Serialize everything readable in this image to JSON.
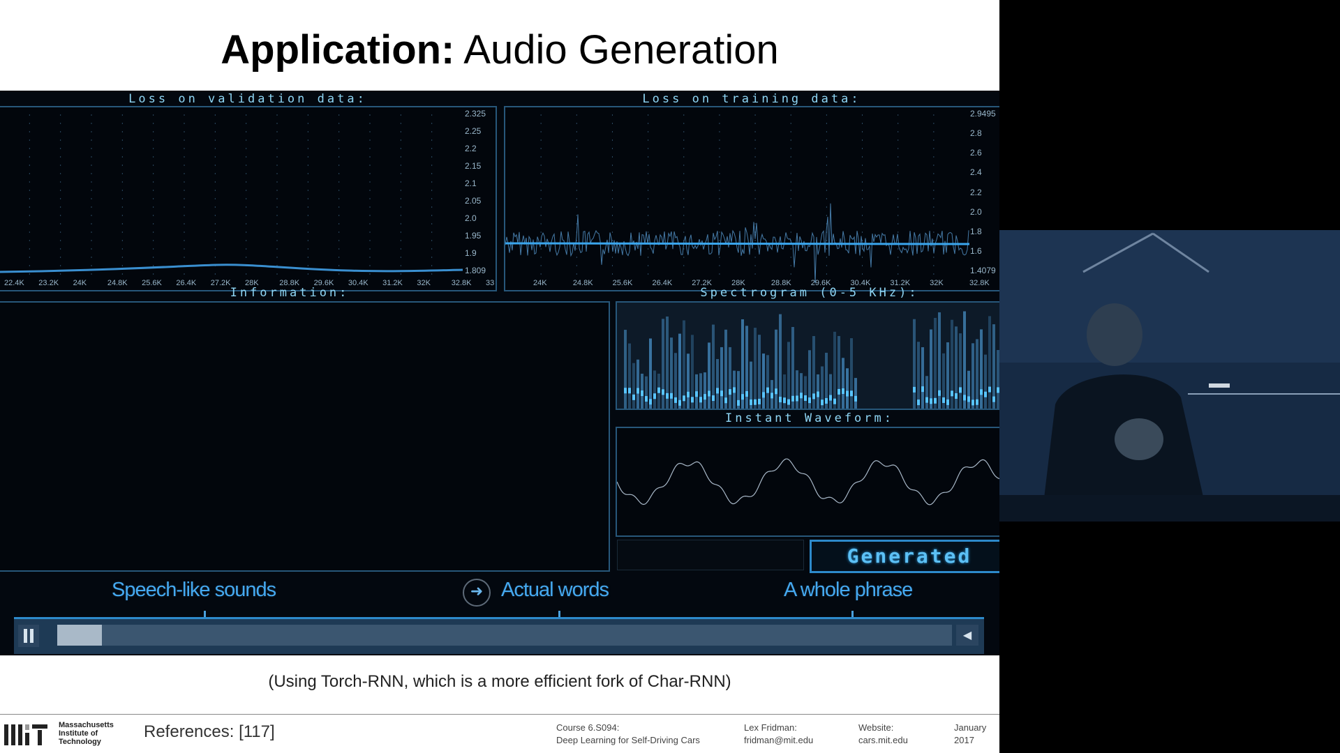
{
  "slide": {
    "title_bold": "Application:",
    "title_rest": " Audio Generation",
    "caption": "(Using Torch-RNN, which is a more efficient fork of Char-RNN)",
    "references": "References: [117]"
  },
  "player": {
    "val_title": "Loss on validation data:",
    "train_title": "Loss on training data:",
    "info_title": "Information:",
    "spec_title": "Spectrogram (0-5 KHz):",
    "wave_title": "Instant Waveform:",
    "generated_label": "Generated",
    "val_y_ticks": [
      "2.325",
      "2.25",
      "2.2",
      "2.15",
      "2.1",
      "2.05",
      "2.0",
      "1.95",
      "1.9",
      "1.809"
    ],
    "val_x_ticks": [
      "22.4K",
      "23.2K",
      "24K",
      "24.8K",
      "25.6K",
      "26.4K",
      "27.2K",
      "28K",
      "28.8K",
      "29.6K",
      "30.4K",
      "31.2K",
      "32K",
      "32.8K",
      "33"
    ],
    "train_y_ticks": [
      "2.9495",
      "2.8",
      "2.6",
      "2.4",
      "2.2",
      "2.0",
      "1.8",
      "1.6",
      "1.4079"
    ],
    "train_x_ticks": [
      "24K",
      "24.8K",
      "25.6K",
      "26.4K",
      "27.2K",
      "28K",
      "28.8K",
      "29.6K",
      "30.4K",
      "31.2K",
      "32K",
      "32.8K"
    ],
    "overlay_1": "Speech-like sounds",
    "overlay_2": "Actual words",
    "overlay_3": "A whole phrase",
    "progress": 0.05,
    "accent": "#45a9f0"
  },
  "footer": {
    "mit_line1": "Massachusetts",
    "mit_line2": "Institute of",
    "mit_line3": "Technology",
    "course_label": "Course 6.S094:",
    "course_name": "Deep Learning for Self-Driving Cars",
    "author_label": "Lex Fridman:",
    "author_email": "fridman@mit.edu",
    "website_label": "Website:",
    "website_url": "cars.mit.edu",
    "date_month": "January",
    "date_year": "2017"
  }
}
